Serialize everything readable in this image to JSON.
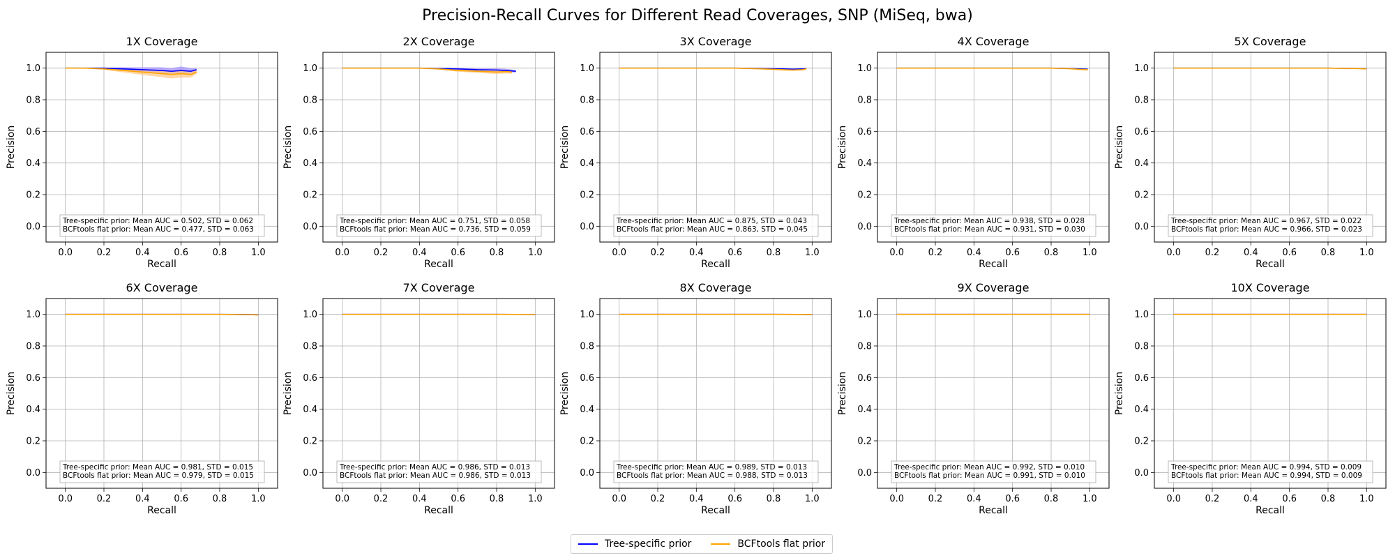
{
  "figure": {
    "title": "Precision-Recall Curves for Different Read Coverages, SNP (MiSeq, bwa)"
  },
  "colors": {
    "tree": "#0000ff",
    "bcf": "#ffa500",
    "tree_band": "#9f8cff",
    "bcf_band": "#ffc480"
  },
  "legend": {
    "placement": "bottom-center",
    "items": [
      {
        "label": "Tree-specific prior",
        "color": "#0000ff"
      },
      {
        "label": "BCFtools flat prior",
        "color": "#ffa500"
      }
    ]
  },
  "chart_data": [
    {
      "type": "line",
      "title": "1X Coverage",
      "xlabel": "Recall",
      "ylabel": "Precision",
      "xlim": [
        -0.1,
        1.1
      ],
      "ylim": [
        -0.1,
        1.1
      ],
      "grid": true,
      "xticks": [
        "0.0",
        "0.2",
        "0.4",
        "0.6",
        "0.8",
        "1.0"
      ],
      "yticks": [
        "0.0",
        "0.2",
        "0.4",
        "0.6",
        "0.8",
        "1.0"
      ],
      "annotation": [
        "Tree-specific prior: Mean AUC = 0.502, STD = 0.062",
        "BCFtools flat prior: Mean AUC = 0.477, STD = 0.063"
      ],
      "series": [
        {
          "name": "Tree-specific prior",
          "x": [
            0,
            0.1,
            0.2,
            0.3,
            0.4,
            0.5,
            0.55,
            0.6,
            0.65,
            0.68
          ],
          "y": [
            1,
            1,
            1,
            0.995,
            0.99,
            0.985,
            0.98,
            0.985,
            0.98,
            0.99
          ],
          "std": [
            0,
            0,
            0.003,
            0.01,
            0.015,
            0.02,
            0.02,
            0.025,
            0.02,
            0.01
          ]
        },
        {
          "name": "BCFtools flat prior",
          "x": [
            0,
            0.1,
            0.2,
            0.3,
            0.4,
            0.5,
            0.55,
            0.6,
            0.65,
            0.68
          ],
          "y": [
            1,
            1,
            0.995,
            0.985,
            0.975,
            0.965,
            0.96,
            0.965,
            0.96,
            0.975
          ],
          "std": [
            0,
            0,
            0.005,
            0.012,
            0.018,
            0.022,
            0.025,
            0.025,
            0.02,
            0.012
          ]
        }
      ]
    },
    {
      "type": "line",
      "title": "2X Coverage",
      "xlabel": "Recall",
      "ylabel": "Precision",
      "xlim": [
        -0.1,
        1.1
      ],
      "ylim": [
        -0.1,
        1.1
      ],
      "grid": true,
      "xticks": [
        "0.0",
        "0.2",
        "0.4",
        "0.6",
        "0.8",
        "1.0"
      ],
      "yticks": [
        "0.0",
        "0.2",
        "0.4",
        "0.6",
        "0.8",
        "1.0"
      ],
      "annotation": [
        "Tree-specific prior: Mean AUC = 0.751, STD = 0.058",
        "BCFtools flat prior: Mean AUC = 0.736, STD = 0.059"
      ],
      "series": [
        {
          "name": "Tree-specific prior",
          "x": [
            0,
            0.2,
            0.4,
            0.5,
            0.6,
            0.7,
            0.8,
            0.85,
            0.9
          ],
          "y": [
            1,
            1,
            1,
            0.998,
            0.995,
            0.99,
            0.988,
            0.985,
            0.98
          ],
          "std": [
            0,
            0,
            0,
            0.003,
            0.006,
            0.008,
            0.01,
            0.01,
            0.008
          ]
        },
        {
          "name": "BCFtools flat prior",
          "x": [
            0,
            0.2,
            0.4,
            0.5,
            0.6,
            0.7,
            0.8,
            0.85,
            0.88
          ],
          "y": [
            1,
            1,
            1,
            0.995,
            0.985,
            0.98,
            0.975,
            0.978,
            0.975
          ],
          "std": [
            0,
            0,
            0,
            0.004,
            0.008,
            0.01,
            0.012,
            0.012,
            0.01
          ]
        }
      ]
    },
    {
      "type": "line",
      "title": "3X Coverage",
      "xlabel": "Recall",
      "ylabel": "Precision",
      "xlim": [
        -0.1,
        1.1
      ],
      "ylim": [
        -0.1,
        1.1
      ],
      "grid": true,
      "xticks": [
        "0.0",
        "0.2",
        "0.4",
        "0.6",
        "0.8",
        "1.0"
      ],
      "yticks": [
        "0.0",
        "0.2",
        "0.4",
        "0.6",
        "0.8",
        "1.0"
      ],
      "annotation": [
        "Tree-specific prior: Mean AUC = 0.875, STD = 0.043",
        "BCFtools flat prior: Mean AUC = 0.863, STD = 0.045"
      ],
      "series": [
        {
          "name": "Tree-specific prior",
          "x": [
            0,
            0.2,
            0.4,
            0.6,
            0.75,
            0.85,
            0.9,
            0.95,
            0.97
          ],
          "y": [
            1,
            1,
            1,
            1,
            0.998,
            0.995,
            0.993,
            0.995,
            0.997
          ],
          "std": [
            0,
            0,
            0,
            0,
            0.003,
            0.005,
            0.005,
            0.004,
            0.003
          ]
        },
        {
          "name": "BCFtools flat prior",
          "x": [
            0,
            0.2,
            0.4,
            0.6,
            0.75,
            0.85,
            0.9,
            0.95,
            0.97
          ],
          "y": [
            1,
            1,
            1,
            1,
            0.995,
            0.99,
            0.988,
            0.99,
            0.995
          ],
          "std": [
            0,
            0,
            0,
            0,
            0.004,
            0.006,
            0.006,
            0.005,
            0.003
          ]
        }
      ]
    },
    {
      "type": "line",
      "title": "4X Coverage",
      "xlabel": "Recall",
      "ylabel": "Precision",
      "xlim": [
        -0.1,
        1.1
      ],
      "ylim": [
        -0.1,
        1.1
      ],
      "grid": true,
      "xticks": [
        "0.0",
        "0.2",
        "0.4",
        "0.6",
        "0.8",
        "1.0"
      ],
      "yticks": [
        "0.0",
        "0.2",
        "0.4",
        "0.6",
        "0.8",
        "1.0"
      ],
      "annotation": [
        "Tree-specific prior: Mean AUC = 0.938, STD = 0.028",
        "BCFtools flat prior: Mean AUC = 0.931, STD = 0.030"
      ],
      "series": [
        {
          "name": "Tree-specific prior",
          "x": [
            0,
            0.2,
            0.4,
            0.6,
            0.8,
            0.9,
            0.95,
            0.99
          ],
          "y": [
            1,
            1,
            1,
            1,
            1,
            0.998,
            0.995,
            0.993
          ],
          "std": [
            0,
            0,
            0,
            0,
            0,
            0.002,
            0.004,
            0.004
          ]
        },
        {
          "name": "BCFtools flat prior",
          "x": [
            0,
            0.2,
            0.4,
            0.6,
            0.8,
            0.9,
            0.95,
            0.99
          ],
          "y": [
            1,
            1,
            1,
            1,
            1,
            0.996,
            0.992,
            0.99
          ],
          "std": [
            0,
            0,
            0,
            0,
            0,
            0.003,
            0.005,
            0.005
          ]
        }
      ]
    },
    {
      "type": "line",
      "title": "5X Coverage",
      "xlabel": "Recall",
      "ylabel": "Precision",
      "xlim": [
        -0.1,
        1.1
      ],
      "ylim": [
        -0.1,
        1.1
      ],
      "grid": true,
      "xticks": [
        "0.0",
        "0.2",
        "0.4",
        "0.6",
        "0.8",
        "1.0"
      ],
      "yticks": [
        "0.0",
        "0.2",
        "0.4",
        "0.6",
        "0.8",
        "1.0"
      ],
      "annotation": [
        "Tree-specific prior: Mean AUC = 0.967, STD = 0.022",
        "BCFtools flat prior: Mean AUC = 0.966, STD = 0.023"
      ],
      "series": [
        {
          "name": "Tree-specific prior",
          "x": [
            0,
            0.2,
            0.4,
            0.6,
            0.8,
            0.95,
            1.0
          ],
          "y": [
            1,
            1,
            1,
            1,
            1,
            0.998,
            0.996
          ],
          "std": [
            0,
            0,
            0,
            0,
            0,
            0.002,
            0.002
          ]
        },
        {
          "name": "BCFtools flat prior",
          "x": [
            0,
            0.2,
            0.4,
            0.6,
            0.8,
            0.95,
            1.0
          ],
          "y": [
            1,
            1,
            1,
            1,
            1,
            0.997,
            0.995
          ],
          "std": [
            0,
            0,
            0,
            0,
            0,
            0.002,
            0.002
          ]
        }
      ]
    },
    {
      "type": "line",
      "title": "6X Coverage",
      "xlabel": "Recall",
      "ylabel": "Precision",
      "xlim": [
        -0.1,
        1.1
      ],
      "ylim": [
        -0.1,
        1.1
      ],
      "grid": true,
      "xticks": [
        "0.0",
        "0.2",
        "0.4",
        "0.6",
        "0.8",
        "1.0"
      ],
      "yticks": [
        "0.0",
        "0.2",
        "0.4",
        "0.6",
        "0.8",
        "1.0"
      ],
      "annotation": [
        "Tree-specific prior: Mean AUC = 0.981, STD = 0.015",
        "BCFtools flat prior: Mean AUC = 0.979, STD = 0.015"
      ],
      "series": [
        {
          "name": "Tree-specific prior",
          "x": [
            0,
            0.2,
            0.4,
            0.6,
            0.8,
            0.95,
            1.0
          ],
          "y": [
            1,
            1,
            1,
            1,
            1,
            0.999,
            0.997
          ],
          "std": [
            0,
            0,
            0,
            0,
            0,
            0.001,
            0.001
          ]
        },
        {
          "name": "BCFtools flat prior",
          "x": [
            0,
            0.2,
            0.4,
            0.6,
            0.8,
            0.95,
            1.0
          ],
          "y": [
            1,
            1,
            1,
            1,
            1,
            0.998,
            0.996
          ],
          "std": [
            0,
            0,
            0,
            0,
            0,
            0.001,
            0.001
          ]
        }
      ]
    },
    {
      "type": "line",
      "title": "7X Coverage",
      "xlabel": "Recall",
      "ylabel": "Precision",
      "xlim": [
        -0.1,
        1.1
      ],
      "ylim": [
        -0.1,
        1.1
      ],
      "grid": true,
      "xticks": [
        "0.0",
        "0.2",
        "0.4",
        "0.6",
        "0.8",
        "1.0"
      ],
      "yticks": [
        "0.0",
        "0.2",
        "0.4",
        "0.6",
        "0.8",
        "1.0"
      ],
      "annotation": [
        "Tree-specific prior: Mean AUC = 0.986, STD = 0.013",
        "BCFtools flat prior: Mean AUC = 0.986, STD = 0.013"
      ],
      "series": [
        {
          "name": "Tree-specific prior",
          "x": [
            0,
            0.2,
            0.4,
            0.6,
            0.8,
            1.0
          ],
          "y": [
            1,
            1,
            1,
            1,
            1,
            0.999
          ],
          "std": [
            0,
            0,
            0,
            0,
            0,
            0
          ]
        },
        {
          "name": "BCFtools flat prior",
          "x": [
            0,
            0.2,
            0.4,
            0.6,
            0.8,
            1.0
          ],
          "y": [
            1,
            1,
            1,
            1,
            1,
            0.999
          ],
          "std": [
            0,
            0,
            0,
            0,
            0,
            0
          ]
        }
      ]
    },
    {
      "type": "line",
      "title": "8X Coverage",
      "xlabel": "Recall",
      "ylabel": "Precision",
      "xlim": [
        -0.1,
        1.1
      ],
      "ylim": [
        -0.1,
        1.1
      ],
      "grid": true,
      "xticks": [
        "0.0",
        "0.2",
        "0.4",
        "0.6",
        "0.8",
        "1.0"
      ],
      "yticks": [
        "0.0",
        "0.2",
        "0.4",
        "0.6",
        "0.8",
        "1.0"
      ],
      "annotation": [
        "Tree-specific prior: Mean AUC = 0.989, STD = 0.013",
        "BCFtools flat prior: Mean AUC = 0.988, STD = 0.013"
      ],
      "series": [
        {
          "name": "Tree-specific prior",
          "x": [
            0,
            0.2,
            0.4,
            0.6,
            0.8,
            1.0
          ],
          "y": [
            1,
            1,
            1,
            1,
            1,
            0.999
          ],
          "std": [
            0,
            0,
            0,
            0,
            0,
            0
          ]
        },
        {
          "name": "BCFtools flat prior",
          "x": [
            0,
            0.2,
            0.4,
            0.6,
            0.8,
            1.0
          ],
          "y": [
            1,
            1,
            1,
            1,
            1,
            0.999
          ],
          "std": [
            0,
            0,
            0,
            0,
            0,
            0
          ]
        }
      ]
    },
    {
      "type": "line",
      "title": "9X Coverage",
      "xlabel": "Recall",
      "ylabel": "Precision",
      "xlim": [
        -0.1,
        1.1
      ],
      "ylim": [
        -0.1,
        1.1
      ],
      "grid": true,
      "xticks": [
        "0.0",
        "0.2",
        "0.4",
        "0.6",
        "0.8",
        "1.0"
      ],
      "yticks": [
        "0.0",
        "0.2",
        "0.4",
        "0.6",
        "0.8",
        "1.0"
      ],
      "annotation": [
        "Tree-specific prior: Mean AUC = 0.992, STD = 0.010",
        "BCFtools flat prior: Mean AUC = 0.991, STD = 0.010"
      ],
      "series": [
        {
          "name": "Tree-specific prior",
          "x": [
            0,
            0.2,
            0.4,
            0.6,
            0.8,
            1.0
          ],
          "y": [
            1,
            1,
            1,
            1,
            1,
            1
          ],
          "std": [
            0,
            0,
            0,
            0,
            0,
            0
          ]
        },
        {
          "name": "BCFtools flat prior",
          "x": [
            0,
            0.2,
            0.4,
            0.6,
            0.8,
            1.0
          ],
          "y": [
            1,
            1,
            1,
            1,
            1,
            1
          ],
          "std": [
            0,
            0,
            0,
            0,
            0,
            0
          ]
        }
      ]
    },
    {
      "type": "line",
      "title": "10X Coverage",
      "xlabel": "Recall",
      "ylabel": "Precision",
      "xlim": [
        -0.1,
        1.1
      ],
      "ylim": [
        -0.1,
        1.1
      ],
      "grid": true,
      "xticks": [
        "0.0",
        "0.2",
        "0.4",
        "0.6",
        "0.8",
        "1.0"
      ],
      "yticks": [
        "0.0",
        "0.2",
        "0.4",
        "0.6",
        "0.8",
        "1.0"
      ],
      "annotation": [
        "Tree-specific prior: Mean AUC = 0.994, STD = 0.009",
        "BCFtools flat prior: Mean AUC = 0.994, STD = 0.009"
      ],
      "series": [
        {
          "name": "Tree-specific prior",
          "x": [
            0,
            0.2,
            0.4,
            0.6,
            0.8,
            1.0
          ],
          "y": [
            1,
            1,
            1,
            1,
            1,
            1
          ],
          "std": [
            0,
            0,
            0,
            0,
            0,
            0
          ]
        },
        {
          "name": "BCFtools flat prior",
          "x": [
            0,
            0.2,
            0.4,
            0.6,
            0.8,
            1.0
          ],
          "y": [
            1,
            1,
            1,
            1,
            1,
            1
          ],
          "std": [
            0,
            0,
            0,
            0,
            0,
            0
          ]
        }
      ]
    }
  ]
}
